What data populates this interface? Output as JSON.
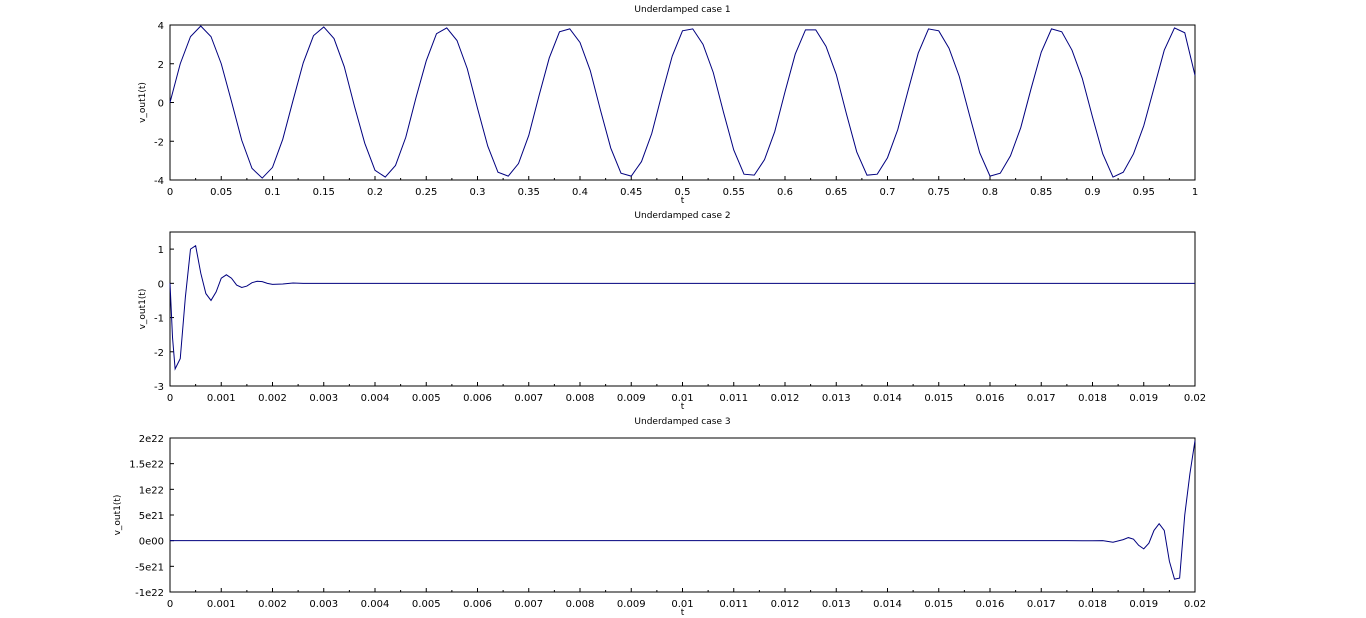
{
  "chart_data": [
    {
      "type": "line",
      "title": "Underdamped case 1",
      "xlabel": "t",
      "ylabel": "v_out1(t)",
      "xlim": [
        0,
        1
      ],
      "ylim": [
        -4,
        4
      ],
      "xticks": [
        "0",
        "0.05",
        "0.1",
        "0.15",
        "0.2",
        "0.25",
        "0.3",
        "0.35",
        "0.4",
        "0.45",
        "0.5",
        "0.55",
        "0.6",
        "0.65",
        "0.7",
        "0.75",
        "0.8",
        "0.85",
        "0.9",
        "0.95",
        "1"
      ],
      "yticks": [
        "-4",
        "-2",
        "0",
        "2",
        "4"
      ],
      "series": [
        {
          "color": "#00007f",
          "x": [
            0,
            0.01,
            0.02,
            0.03,
            0.04,
            0.05,
            0.06,
            0.07,
            0.08,
            0.09,
            0.1,
            0.11,
            0.12,
            0.13,
            0.14,
            0.15,
            0.16,
            0.17,
            0.18,
            0.19,
            0.2,
            0.21,
            0.22,
            0.23,
            0.24,
            0.25,
            0.26,
            0.27,
            0.28,
            0.29,
            0.3,
            0.31,
            0.32,
            0.33,
            0.34,
            0.35,
            0.36,
            0.37,
            0.38,
            0.39,
            0.4,
            0.41,
            0.42,
            0.43,
            0.44,
            0.45,
            0.46,
            0.47,
            0.48,
            0.49,
            0.5,
            0.51,
            0.52,
            0.53,
            0.54,
            0.55,
            0.56,
            0.57,
            0.58,
            0.59,
            0.6,
            0.61,
            0.62,
            0.63,
            0.64,
            0.65,
            0.66,
            0.67,
            0.68,
            0.69,
            0.7,
            0.71,
            0.72,
            0.73,
            0.74,
            0.75,
            0.76,
            0.77,
            0.78,
            0.79,
            0.8,
            0.81,
            0.82,
            0.83,
            0.84,
            0.85,
            0.86,
            0.87,
            0.88,
            0.89,
            0.9,
            0.91,
            0.92,
            0.93,
            0.94,
            0.95,
            0.96,
            0.97,
            0.98,
            0.99,
            1.0
          ],
          "y": [
            0,
            2.0,
            3.4,
            3.95,
            3.4,
            2.0,
            0.05,
            -1.95,
            -3.4,
            -3.9,
            -3.35,
            -1.9,
            0.1,
            2.05,
            3.45,
            3.9,
            3.3,
            1.85,
            -0.2,
            -2.1,
            -3.5,
            -3.85,
            -3.25,
            -1.8,
            0.25,
            2.15,
            3.55,
            3.85,
            3.2,
            1.75,
            -0.3,
            -2.25,
            -3.6,
            -3.8,
            -3.15,
            -1.7,
            0.35,
            2.3,
            3.65,
            3.8,
            3.1,
            1.65,
            -0.4,
            -2.35,
            -3.65,
            -3.8,
            -3.05,
            -1.6,
            0.45,
            2.4,
            3.7,
            3.8,
            3.0,
            1.55,
            -0.5,
            -2.45,
            -3.7,
            -3.75,
            -2.95,
            -1.5,
            0.55,
            2.5,
            3.75,
            3.75,
            2.9,
            1.45,
            -0.6,
            -2.55,
            -3.75,
            -3.7,
            -2.85,
            -1.4,
            0.6,
            2.55,
            3.8,
            3.7,
            2.8,
            1.35,
            -0.65,
            -2.6,
            -3.8,
            -3.65,
            -2.75,
            -1.3,
            0.7,
            2.6,
            3.8,
            3.65,
            2.7,
            1.25,
            -0.75,
            -2.65,
            -3.85,
            -3.6,
            -2.65,
            -1.2,
            0.75,
            2.7,
            3.85,
            3.6,
            1.4
          ]
        }
      ]
    },
    {
      "type": "line",
      "title": "Underdamped case 2",
      "xlabel": "t",
      "ylabel": "v_out1(t)",
      "xlim": [
        0,
        0.02
      ],
      "ylim": [
        -3,
        1.5
      ],
      "xticks": [
        "0",
        "0.001",
        "0.002",
        "0.003",
        "0.004",
        "0.005",
        "0.006",
        "0.007",
        "0.008",
        "0.009",
        "0.01",
        "0.011",
        "0.012",
        "0.013",
        "0.014",
        "0.015",
        "0.016",
        "0.017",
        "0.018",
        "0.019",
        "0.02"
      ],
      "yticks": [
        "-3",
        "-2",
        "-1",
        "0",
        "1"
      ],
      "series": [
        {
          "color": "#00007f",
          "x": [
            0,
            5e-05,
            0.0001,
            0.0002,
            0.0003,
            0.0004,
            0.0005,
            0.0006,
            0.0007,
            0.0008,
            0.0009,
            0.001,
            0.0011,
            0.0012,
            0.0013,
            0.0014,
            0.0015,
            0.0016,
            0.0017,
            0.0018,
            0.0019,
            0.002,
            0.0022,
            0.0024,
            0.0026,
            0.003,
            0.004,
            0.006,
            0.01,
            0.015,
            0.02
          ],
          "y": [
            0,
            -1.6,
            -2.5,
            -2.2,
            -0.4,
            1.0,
            1.1,
            0.3,
            -0.3,
            -0.5,
            -0.25,
            0.15,
            0.25,
            0.15,
            -0.05,
            -0.12,
            -0.08,
            0.02,
            0.06,
            0.05,
            0.0,
            -0.03,
            -0.02,
            0.01,
            0.0,
            0,
            0,
            0,
            0,
            0,
            0
          ]
        }
      ]
    },
    {
      "type": "line",
      "title": "Underdamped case 3",
      "xlabel": "t",
      "ylabel": "v_out1(t)",
      "xlim": [
        0,
        0.02
      ],
      "ylim": [
        -1e+22,
        2e+22
      ],
      "xticks": [
        "0",
        "0.001",
        "0.002",
        "0.003",
        "0.004",
        "0.005",
        "0.006",
        "0.007",
        "0.008",
        "0.009",
        "0.01",
        "0.011",
        "0.012",
        "0.013",
        "0.014",
        "0.015",
        "0.016",
        "0.017",
        "0.018",
        "0.019",
        "0.02"
      ],
      "yticks": [
        "-1e22",
        "-5e21",
        "0e00",
        "5e21",
        "1e22",
        "1.5e22",
        "2e22"
      ],
      "series": [
        {
          "color": "#00007f",
          "x": [
            0,
            0.017,
            0.0175,
            0.0178,
            0.018,
            0.0182,
            0.0184,
            0.0186,
            0.0187,
            0.0188,
            0.0189,
            0.019,
            0.0191,
            0.0192,
            0.0193,
            0.0194,
            0.0195,
            0.0196,
            0.0197,
            0.0198,
            0.0199,
            0.02
          ],
          "y": [
            0,
            0,
            0,
            -1e+19,
            -2e+19,
            0,
            -3e+20,
            2e+20,
            6e+20,
            3e+20,
            -9e+20,
            -1.6e+21,
            -5e+20,
            2e+21,
            3.3e+21,
            2e+21,
            -4e+21,
            -7.5e+21,
            -7.3e+21,
            5e+21,
            1.3e+22,
            1.95e+22
          ]
        }
      ]
    }
  ]
}
